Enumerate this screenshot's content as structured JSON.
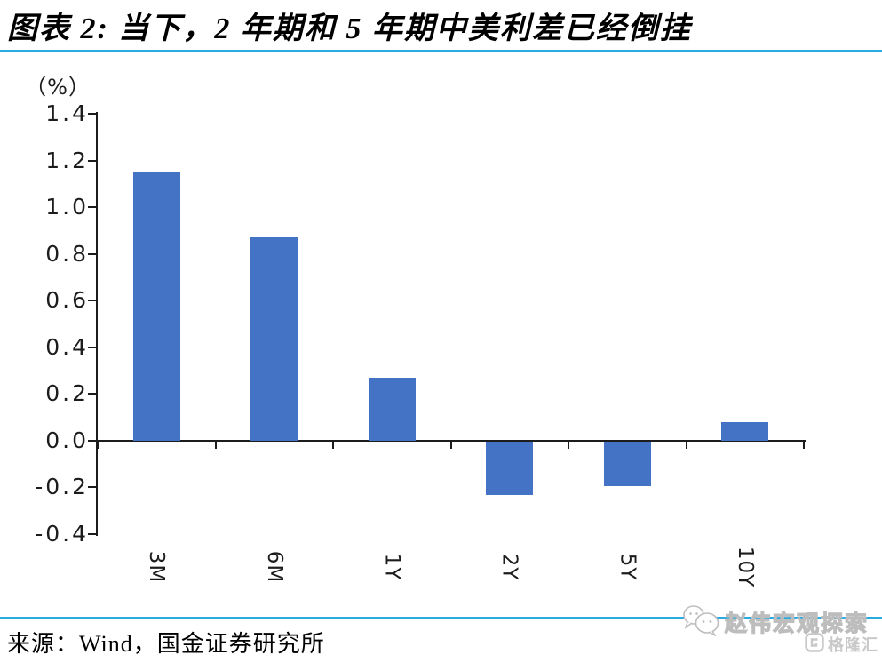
{
  "header": {
    "title": "图表 2:  当下，2 年期和 5 年期中美利差已经倒挂"
  },
  "chart_data": {
    "type": "bar",
    "title": "当下，2 年期和 5 年期中美利差已经倒挂",
    "unit_label": "（%）",
    "categories": [
      "3M",
      "6M",
      "1Y",
      "2Y",
      "5Y",
      "10Y"
    ],
    "values": [
      1.15,
      0.87,
      0.27,
      -0.23,
      -0.19,
      0.08
    ],
    "xlabel": "",
    "ylabel": "（%）",
    "ylim": [
      -0.4,
      1.4
    ],
    "ytick_step": 0.2,
    "ytick_labels": [
      "1.4",
      "1.2",
      "1.0",
      "0.8",
      "0.6",
      "0.4",
      "0.2",
      "0.0",
      "-0.2",
      "-0.4"
    ],
    "grid": false,
    "legend": "none",
    "x_labels_rotated_90_deg": true
  },
  "footer": {
    "source": "来源：Wind，国金证券研究所"
  },
  "watermark": {
    "account_name": "赵伟宏观探索",
    "platform_logo_text": "格隆汇"
  },
  "colors": {
    "accent_rule": "#29ABE2",
    "bar": "#4472C4",
    "axis": "#1c1c1c",
    "watermark_gray": "#c9c9c9"
  }
}
